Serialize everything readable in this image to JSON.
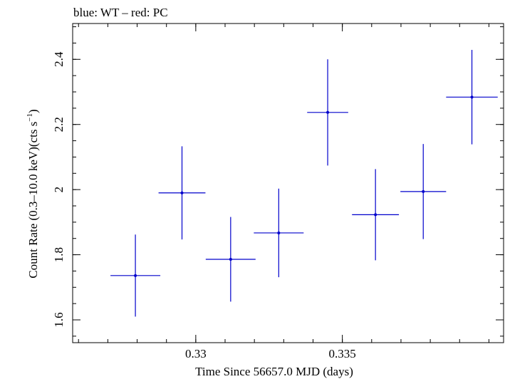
{
  "chart_data": {
    "type": "scatter",
    "title": "blue: WT – red: PC",
    "xlabel": "Time Since 56657.0 MJD (days)",
    "ylabel": "Count Rate (0.3–10.0 keV)(cts s",
    "ylabel_exponent": "−1",
    "ylabel_close": ")",
    "xlim": [
      0.3258,
      0.3405
    ],
    "ylim": [
      1.53,
      2.51
    ],
    "x_ticks": [
      0.33,
      0.335
    ],
    "x_tick_labels": [
      "0.33",
      "0.335"
    ],
    "x_minor_step": 0.001,
    "y_ticks": [
      1.6,
      1.8,
      2.0,
      2.2,
      2.4
    ],
    "y_tick_labels": [
      "1.6",
      "1.8",
      "2",
      "2.2",
      "2.4"
    ],
    "y_minor_step": 0.05,
    "grid": false,
    "color": "#0000cc",
    "series": [
      {
        "points": [
          {
            "x": 0.32794,
            "y": 1.736,
            "xerr": 0.00085,
            "yerr": 0.126
          },
          {
            "x": 0.32953,
            "y": 1.99,
            "xerr": 0.0008,
            "yerr": 0.143
          },
          {
            "x": 0.33119,
            "y": 1.786,
            "xerr": 0.00085,
            "yerr": 0.13
          },
          {
            "x": 0.33283,
            "y": 1.867,
            "xerr": 0.00085,
            "yerr": 0.136
          },
          {
            "x": 0.3345,
            "y": 2.237,
            "xerr": 0.0007,
            "yerr": 0.163
          },
          {
            "x": 0.33613,
            "y": 1.923,
            "xerr": 0.0008,
            "yerr": 0.14
          },
          {
            "x": 0.33776,
            "y": 1.994,
            "xerr": 0.00078,
            "yerr": 0.146
          },
          {
            "x": 0.33942,
            "y": 2.284,
            "xerr": 0.00088,
            "yerr": 0.145
          }
        ]
      }
    ]
  }
}
